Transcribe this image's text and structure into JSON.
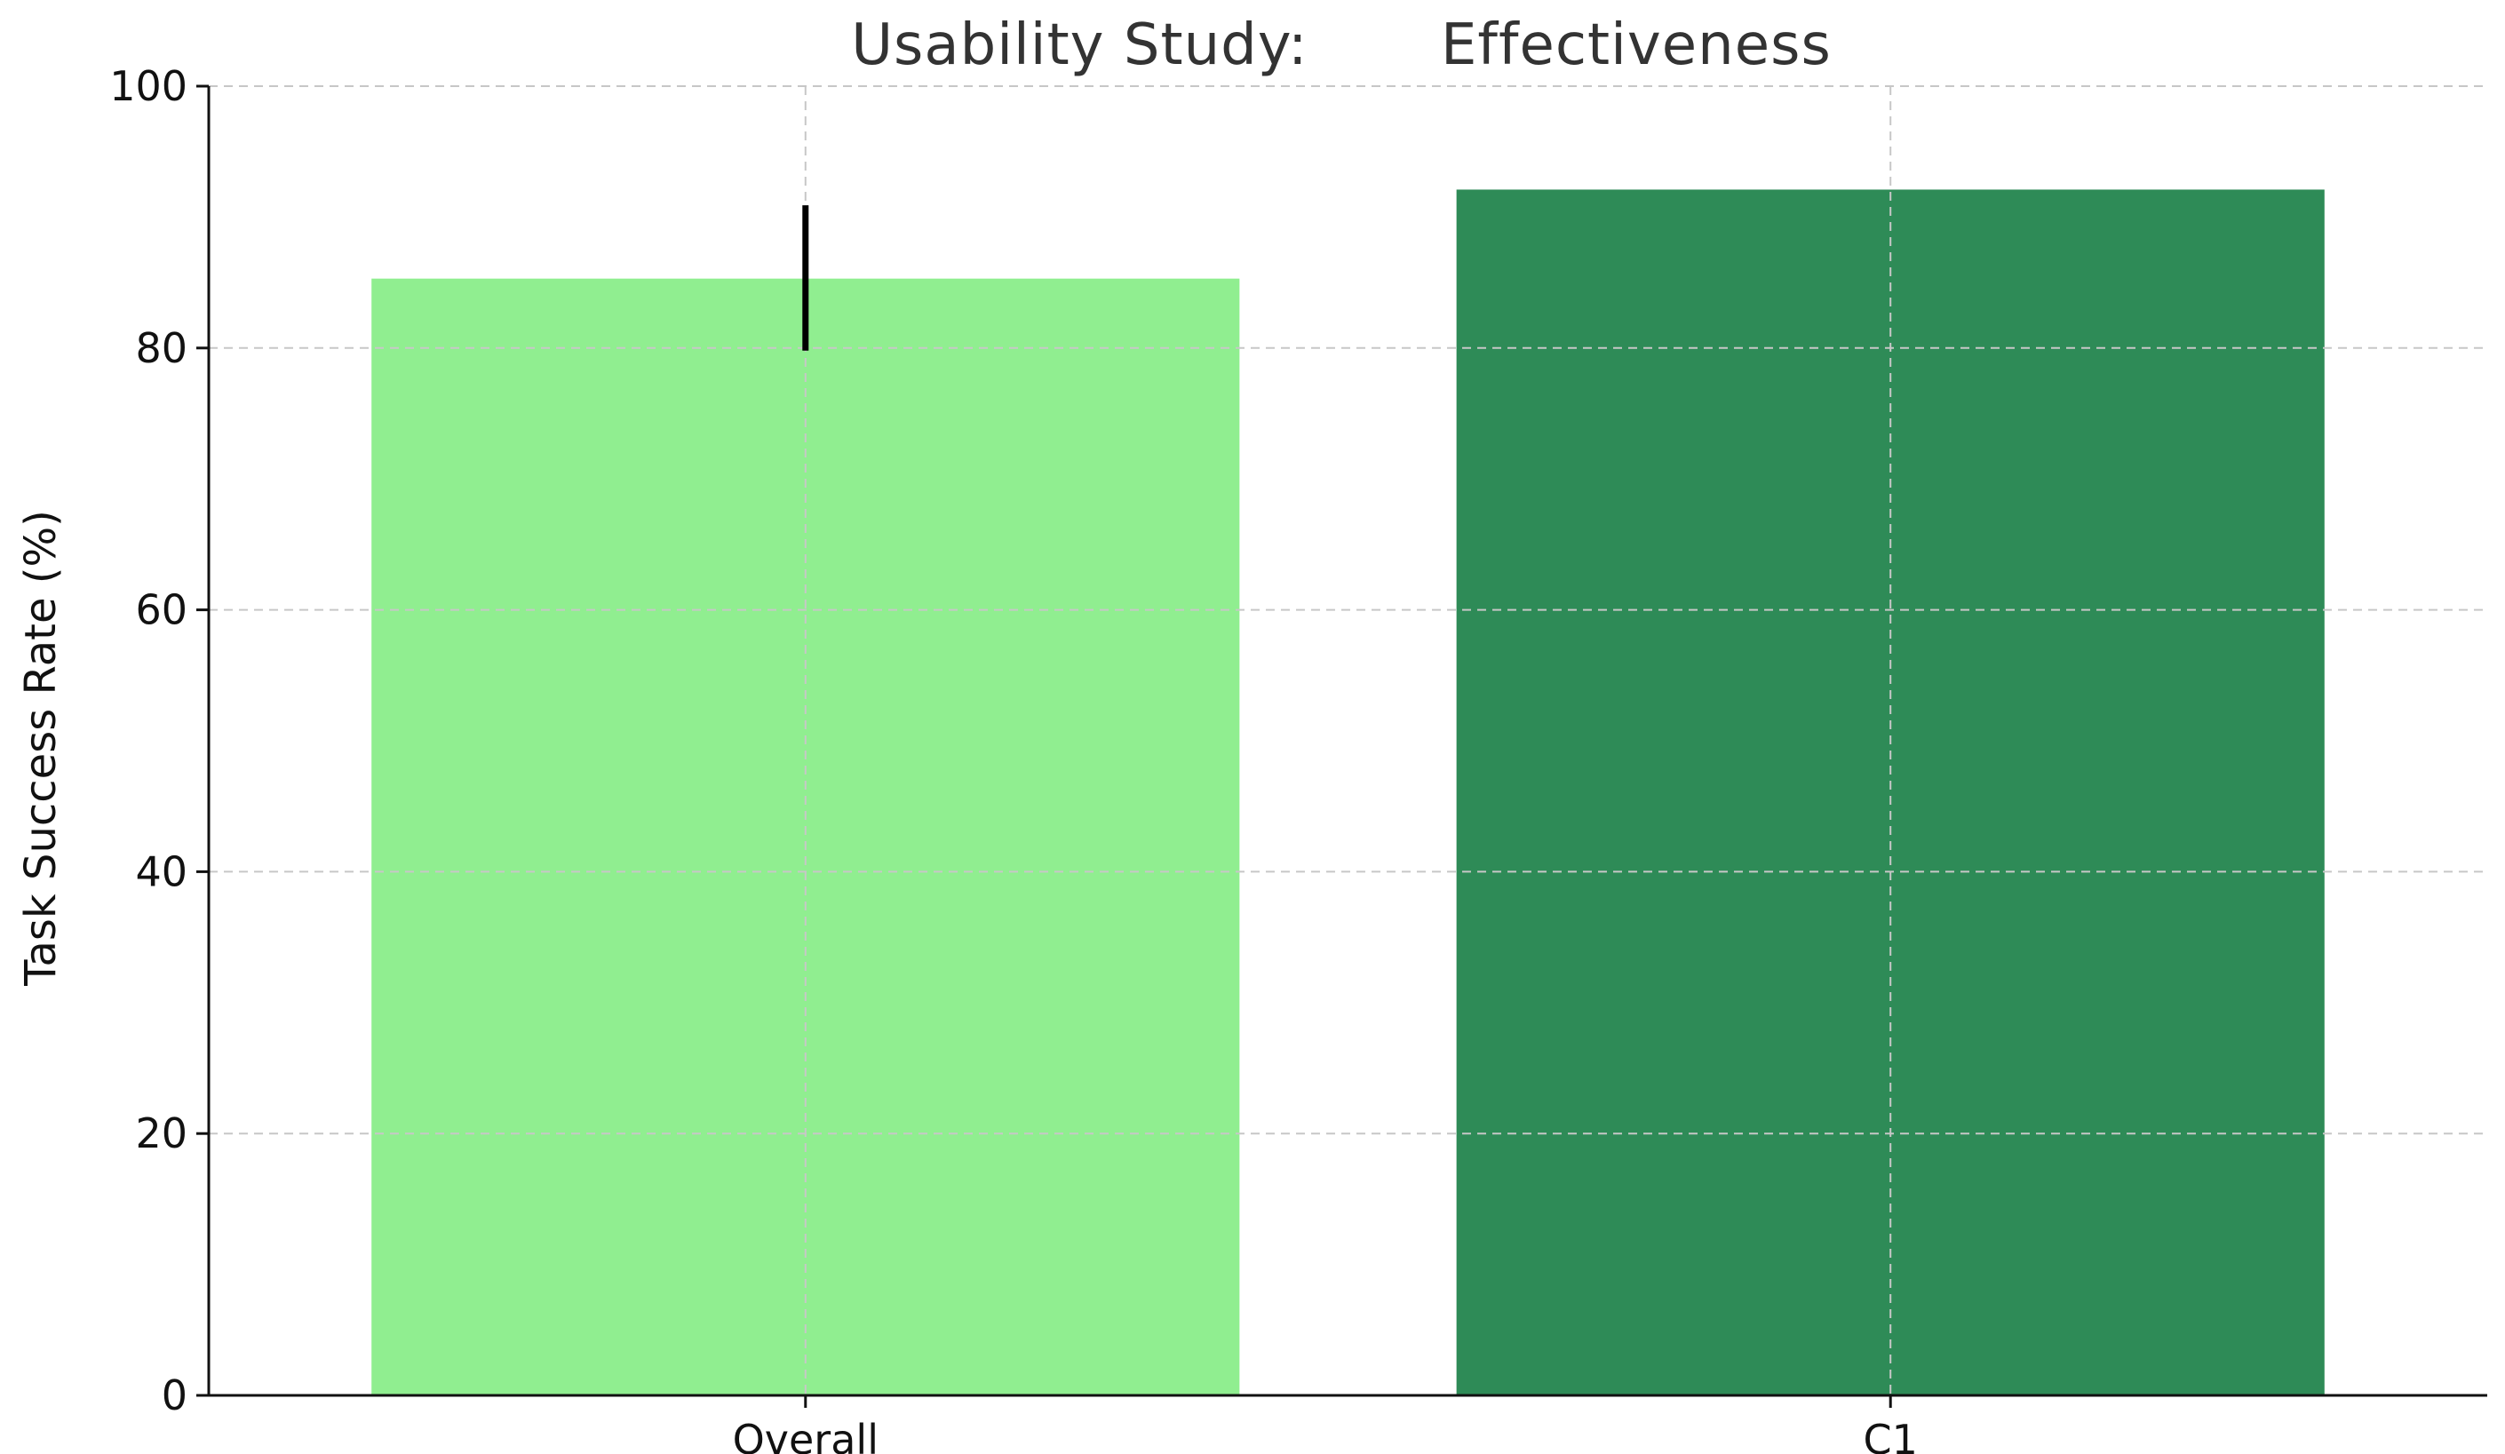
{
  "chart_data": {
    "type": "bar",
    "title": "Usability Study:       Effectiveness",
    "xlabel": "",
    "ylabel": "Task Success Rate (%)",
    "categories": [
      "Overall",
      "C1"
    ],
    "values": [
      85.3,
      92.1
    ],
    "error_bars": [
      {
        "category": "Overall",
        "low": 79.8,
        "high": 90.9
      },
      {
        "category": "C1",
        "low": null,
        "high": null
      }
    ],
    "bar_colors": [
      "#90ee90",
      "#2e8b57"
    ],
    "ylim": [
      0,
      100
    ],
    "yticks": [
      0,
      20,
      40,
      60,
      80,
      100
    ],
    "grid": true,
    "legend": "none"
  }
}
